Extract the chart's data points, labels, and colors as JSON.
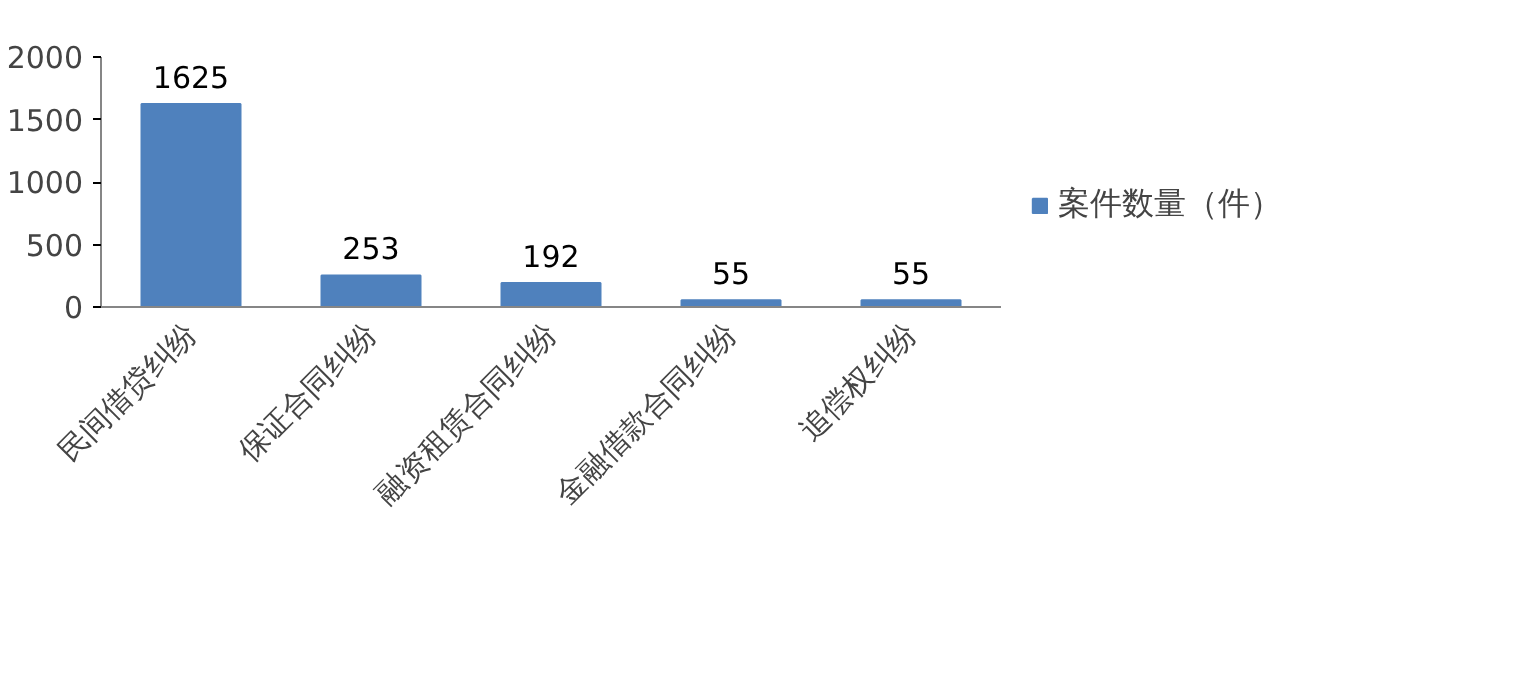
{
  "chart_data": {
    "type": "bar",
    "categories": [
      "民间借贷纠纷",
      "保证合同纠纷",
      "融资租赁合同纠纷",
      "金融借款合同纠纷",
      "追偿权纠纷"
    ],
    "series": [
      {
        "name": "案件数量（件）",
        "color": "#4f81bd",
        "values": [
          1625,
          253,
          192,
          55,
          55
        ]
      }
    ],
    "ylim": [
      0,
      2000
    ],
    "yticks": [
      0,
      500,
      1000,
      1500,
      2000
    ],
    "data_labels": true,
    "grid": false,
    "legend": "right"
  }
}
